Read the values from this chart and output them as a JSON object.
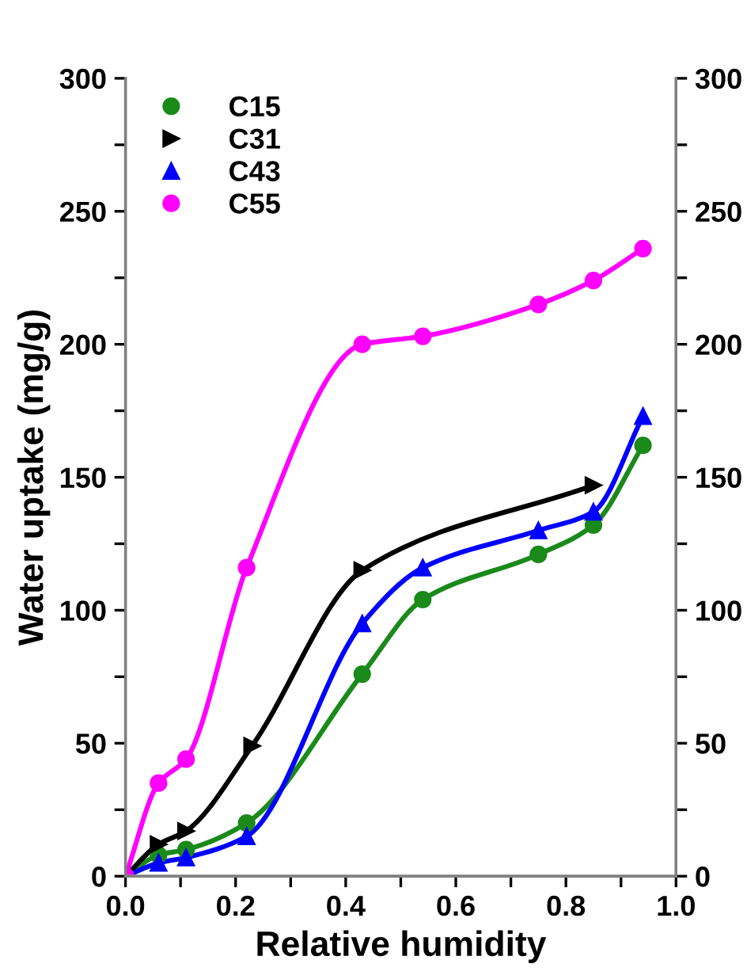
{
  "chart_data": {
    "type": "line",
    "xlabel": "Relative humidity",
    "ylabel": "Water uptake (mg/g)",
    "xlim": [
      0,
      1
    ],
    "xticks": [
      {
        "value": 0,
        "label": "0.0"
      },
      {
        "value": 0.1,
        "label": null
      },
      {
        "value": 0.2,
        "label": "0.2"
      },
      {
        "value": 0.3,
        "label": null
      },
      {
        "value": 0.4,
        "label": "0.4"
      },
      {
        "value": 0.5,
        "label": null
      },
      {
        "value": 0.6,
        "label": "0.6"
      },
      {
        "value": 0.7,
        "label": null
      },
      {
        "value": 0.8,
        "label": "0.8"
      },
      {
        "value": 0.9,
        "label": null
      },
      {
        "value": 1,
        "label": "1.0"
      }
    ],
    "ylim": [
      0,
      300
    ],
    "yticks": [
      0,
      {
        "value": 25,
        "label": null
      },
      50,
      {
        "value": 75,
        "label": null
      },
      100,
      {
        "value": 125,
        "label": null
      },
      150,
      {
        "value": 175,
        "label": null
      },
      200,
      {
        "value": 225,
        "label": null
      },
      250,
      {
        "value": 275,
        "label": null
      },
      300
    ],
    "y2lim": [
      0,
      300
    ],
    "y2ticks": [
      0,
      {
        "value": 25,
        "label": null
      },
      50,
      {
        "value": 75,
        "label": null
      },
      100,
      {
        "value": 125,
        "label": null
      },
      150,
      {
        "value": 175,
        "label": null
      },
      200,
      {
        "value": 225,
        "label": null
      },
      250,
      {
        "value": 275,
        "label": null
      },
      300
    ],
    "legend": "top left",
    "grid": false,
    "line_style": "solid",
    "series": [
      {
        "name": "C15",
        "color": "#1a8a1a",
        "marker": "circle",
        "x": [
          0,
          0.06,
          0.11,
          0.22,
          0.43,
          0.54,
          0.75,
          0.85,
          0.94
        ],
        "values": [
          0,
          8,
          10,
          20,
          76,
          104,
          121,
          132,
          162
        ]
      },
      {
        "name": "C31",
        "color": "#000000",
        "marker": "triangle_right",
        "x": [
          0,
          0.06,
          0.11,
          0.23,
          0.43,
          0.85
        ],
        "values": [
          0,
          12,
          17,
          49,
          115,
          147
        ]
      },
      {
        "name": "C43",
        "color": "#0000ff",
        "marker": "triangle",
        "x": [
          0,
          0.06,
          0.11,
          0.22,
          0.43,
          0.54,
          0.75,
          0.85,
          0.94
        ],
        "values": [
          0,
          5,
          7,
          15,
          95,
          116,
          130,
          137,
          173
        ]
      },
      {
        "name": "C55",
        "color": "#ff00ff",
        "marker": "circle",
        "x": [
          0,
          0.06,
          0.11,
          0.22,
          0.43,
          0.54,
          0.75,
          0.85,
          0.94
        ],
        "values": [
          0,
          35,
          44,
          116,
          200,
          203,
          215,
          224,
          236
        ]
      }
    ]
  }
}
